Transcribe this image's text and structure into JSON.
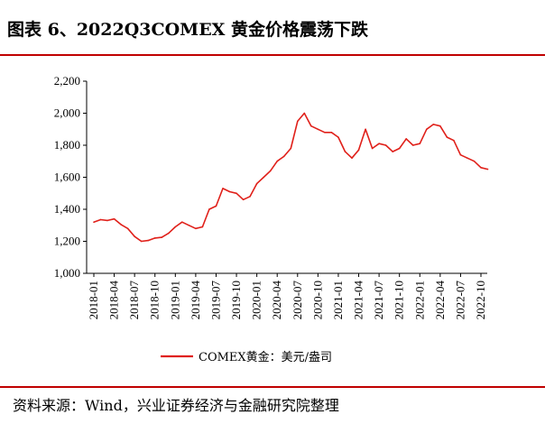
{
  "header": {
    "title": "图表 6、2022Q3COMEX 黄金价格震荡下跌"
  },
  "footer": {
    "source": "资料来源：Wind，兴业证券经济与金融研究院整理"
  },
  "colors": {
    "accent": "#c00000",
    "series": "#e0201a"
  },
  "chart_data": {
    "type": "line",
    "title": "",
    "xlabel": "",
    "ylabel": "",
    "ylim": [
      1000,
      2200
    ],
    "yticks": [
      1000,
      1200,
      1400,
      1600,
      1800,
      2000,
      2200
    ],
    "ytick_labels": [
      "1,000",
      "1,200",
      "1,400",
      "1,600",
      "1,800",
      "2,000",
      "2,200"
    ],
    "xtick_labels": [
      "2018-01",
      "2018-04",
      "2018-07",
      "2018-10",
      "2019-01",
      "2019-04",
      "2019-07",
      "2019-10",
      "2020-01",
      "2020-04",
      "2020-07",
      "2020-10",
      "2021-01",
      "2021-04",
      "2021-07",
      "2021-10",
      "2022-01",
      "2022-04",
      "2022-07",
      "2022-10"
    ],
    "grid": false,
    "legend_position": "bottom-center",
    "series": [
      {
        "name": "COMEX黄金：美元/盎司",
        "x": [
          "2018-01",
          "2018-02",
          "2018-03",
          "2018-04",
          "2018-05",
          "2018-06",
          "2018-07",
          "2018-08",
          "2018-09",
          "2018-10",
          "2018-11",
          "2018-12",
          "2019-01",
          "2019-02",
          "2019-03",
          "2019-04",
          "2019-05",
          "2019-06",
          "2019-07",
          "2019-08",
          "2019-09",
          "2019-10",
          "2019-11",
          "2019-12",
          "2020-01",
          "2020-02",
          "2020-03",
          "2020-04",
          "2020-05",
          "2020-06",
          "2020-07",
          "2020-08",
          "2020-09",
          "2020-10",
          "2020-11",
          "2020-12",
          "2021-01",
          "2021-02",
          "2021-03",
          "2021-04",
          "2021-05",
          "2021-06",
          "2021-07",
          "2021-08",
          "2021-09",
          "2021-10",
          "2021-11",
          "2021-12",
          "2022-01",
          "2022-02",
          "2022-03",
          "2022-04",
          "2022-05",
          "2022-06",
          "2022-07",
          "2022-08",
          "2022-09",
          "2022-10",
          "2022-11"
        ],
        "values": [
          1320,
          1335,
          1330,
          1340,
          1305,
          1280,
          1230,
          1200,
          1205,
          1220,
          1225,
          1250,
          1290,
          1320,
          1300,
          1280,
          1290,
          1400,
          1420,
          1530,
          1510,
          1500,
          1460,
          1480,
          1560,
          1600,
          1640,
          1700,
          1730,
          1780,
          1950,
          2000,
          1920,
          1900,
          1880,
          1880,
          1850,
          1760,
          1720,
          1770,
          1900,
          1780,
          1810,
          1800,
          1760,
          1780,
          1840,
          1800,
          1810,
          1900,
          1930,
          1920,
          1850,
          1830,
          1740,
          1720,
          1700,
          1660,
          1650
        ]
      }
    ]
  }
}
